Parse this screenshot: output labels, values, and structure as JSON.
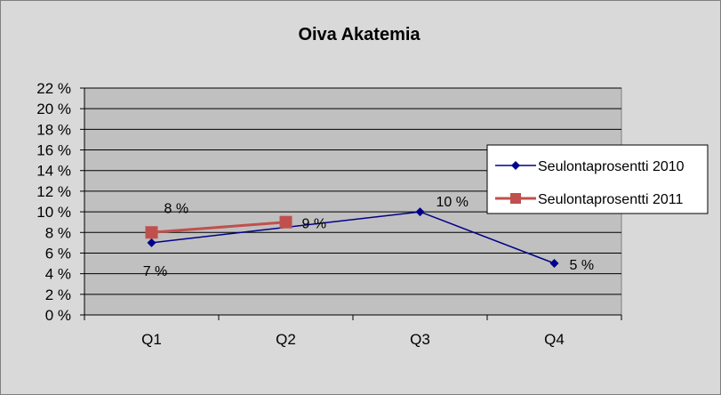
{
  "chart_data": {
    "type": "line",
    "title": "Oiva Akatemia",
    "xlabel": "",
    "ylabel": "",
    "categories": [
      "Q1",
      "Q2",
      "Q3",
      "Q4"
    ],
    "ylim": [
      0,
      22
    ],
    "ystep": 2,
    "y_tick_labels": [
      "0 %",
      "2 %",
      "4 %",
      "6 %",
      "8 %",
      "10 %",
      "12 %",
      "14 %",
      "16 %",
      "18 %",
      "20 %",
      "22 %"
    ],
    "grid": true,
    "legend_position": "right",
    "series": [
      {
        "name": "Seulontaprosentti 2010",
        "color": "#00008b",
        "marker": "diamond",
        "values": [
          7,
          null,
          10,
          5
        ],
        "labels": [
          "7 %",
          null,
          "10 %",
          "5 %"
        ]
      },
      {
        "name": "Seulontaprosentti 2011",
        "color": "#c0504d",
        "marker": "square",
        "values": [
          8,
          9,
          null,
          null
        ],
        "labels": [
          "8 %",
          "9 %",
          null,
          null
        ]
      }
    ]
  }
}
